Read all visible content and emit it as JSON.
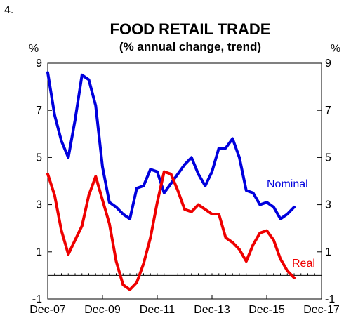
{
  "figure_number": "4.",
  "chart_data": {
    "type": "line",
    "title": "FOOD RETAIL TRADE",
    "subtitle": "(% annual change, trend)",
    "unit_left": "%",
    "unit_right": "%",
    "ylim": [
      -1,
      9
    ],
    "y_ticks": [
      -1,
      1,
      3,
      5,
      7,
      9
    ],
    "y_tick_labels": [
      "-1",
      "1",
      "3",
      "5",
      "7",
      "9"
    ],
    "x_tick_labels": [
      "Dec-07",
      "Dec-09",
      "Dec-11",
      "Dec-13",
      "Dec-15",
      "Dec-17"
    ],
    "x_range_quarters": [
      0,
      40
    ],
    "x_unit": "quarters from Dec-07",
    "zero_line": true,
    "grid": false,
    "series": [
      {
        "name": "Nominal",
        "color": "#0000dd",
        "x": [
          0,
          1,
          2,
          3,
          4,
          5,
          6,
          7,
          8,
          9,
          10,
          11,
          12,
          13,
          14,
          15,
          16,
          17,
          18,
          19,
          20,
          21,
          22,
          23,
          24,
          25,
          26,
          27,
          28,
          29,
          30,
          31,
          32,
          33,
          34,
          35,
          36
        ],
        "values": [
          8.6,
          6.8,
          5.7,
          5.0,
          6.6,
          8.5,
          8.3,
          7.2,
          4.6,
          3.1,
          2.9,
          2.6,
          2.4,
          3.7,
          3.8,
          4.5,
          4.4,
          3.5,
          3.9,
          4.3,
          4.7,
          5.0,
          4.3,
          3.8,
          4.4,
          5.4,
          5.4,
          5.8,
          5.0,
          3.6,
          3.5,
          3.0,
          3.1,
          2.9,
          2.4,
          2.6,
          2.9
        ]
      },
      {
        "name": "Real",
        "color": "#ee0000",
        "x": [
          0,
          1,
          2,
          3,
          4,
          5,
          6,
          7,
          8,
          9,
          10,
          11,
          12,
          13,
          14,
          15,
          16,
          17,
          18,
          19,
          20,
          21,
          22,
          23,
          24,
          25,
          26,
          27,
          28,
          29,
          30,
          31,
          32,
          33,
          34,
          35,
          36
        ],
        "values": [
          4.3,
          3.4,
          1.9,
          0.9,
          1.5,
          2.1,
          3.4,
          4.2,
          3.2,
          2.2,
          0.6,
          -0.4,
          -0.6,
          -0.3,
          0.5,
          1.6,
          3.1,
          4.4,
          4.3,
          3.6,
          2.8,
          2.7,
          3.0,
          2.8,
          2.6,
          2.6,
          1.6,
          1.4,
          1.1,
          0.6,
          1.3,
          1.8,
          1.9,
          1.5,
          0.7,
          0.2,
          -0.1
        ]
      }
    ]
  }
}
